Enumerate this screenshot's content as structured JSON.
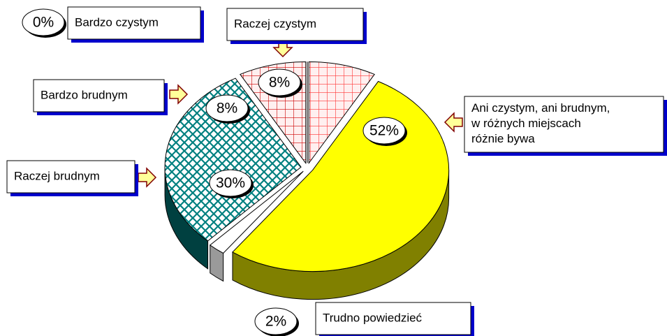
{
  "chart_data": {
    "type": "pie3d",
    "categories": [
      "Bardzo czystym",
      "Raczej czystym",
      "Ani czystym, ani brudnym,\nw różnych miejscach\nróżnie bywa",
      "Trudno powiedzieć",
      "Raczej brudnym",
      "Bardzo brudnym"
    ],
    "values": [
      0,
      8,
      52,
      2,
      30,
      8
    ],
    "value_labels": [
      "0%",
      "8%",
      "52%",
      "2%",
      "30%",
      "8%"
    ],
    "colors": [
      "#ffffff",
      "#ff3333",
      "#ffff00",
      "#ffffff",
      "#008080",
      "#cc0000"
    ],
    "patterns": [
      "solid",
      "grid",
      "solid",
      "solid",
      "crosshatch",
      "grid"
    ]
  }
}
